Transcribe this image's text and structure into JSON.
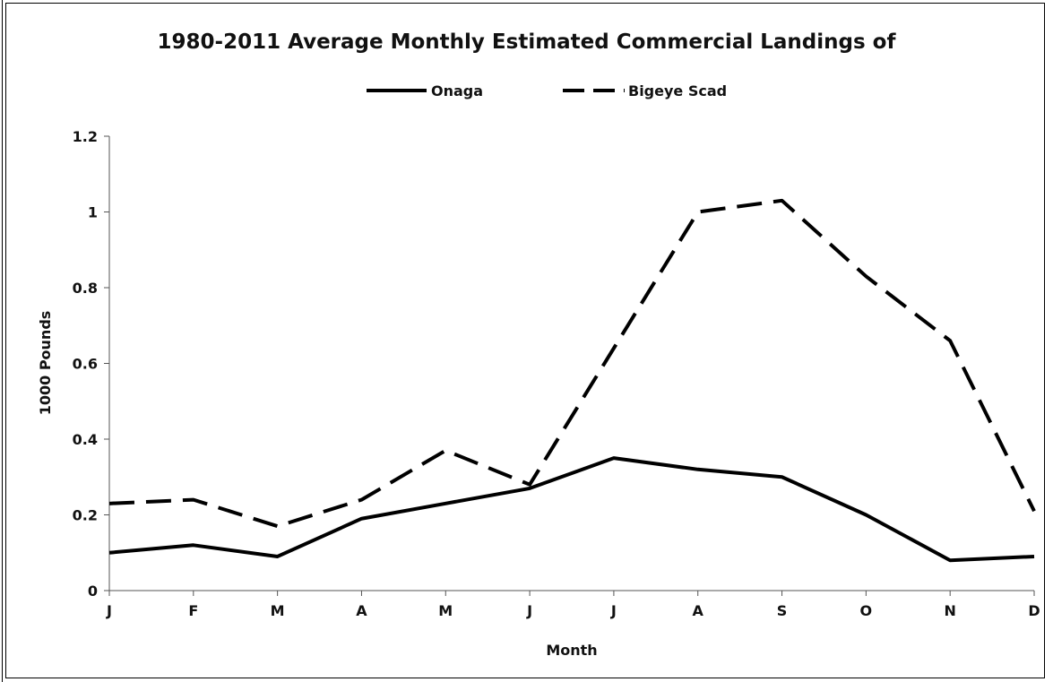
{
  "chart_data": {
    "type": "line",
    "title": "1980-2011 Average Monthly Estimated Commercial Landings of",
    "xlabel": "Month",
    "ylabel": "1000 Pounds",
    "categories": [
      "J",
      "F",
      "M",
      "A",
      "M",
      "J",
      "J",
      "A",
      "S",
      "O",
      "N",
      "D"
    ],
    "ylim": [
      0,
      1.2
    ],
    "yticks": [
      "0",
      "0.2",
      "0.4",
      "0.6",
      "0.8",
      "1",
      "1.2"
    ],
    "grid": false,
    "legend_position": "top",
    "series": [
      {
        "name": "Onaga",
        "style": "solid",
        "color": "#000000",
        "values": [
          0.1,
          0.12,
          0.09,
          0.19,
          0.23,
          0.27,
          0.35,
          0.32,
          0.3,
          0.2,
          0.08,
          0.09
        ]
      },
      {
        "name": "Bigeye Scad",
        "style": "dashed",
        "color": "#000000",
        "values": [
          0.23,
          0.24,
          0.17,
          0.24,
          0.37,
          0.28,
          0.64,
          1.0,
          1.03,
          0.83,
          0.66,
          0.21
        ]
      }
    ]
  }
}
